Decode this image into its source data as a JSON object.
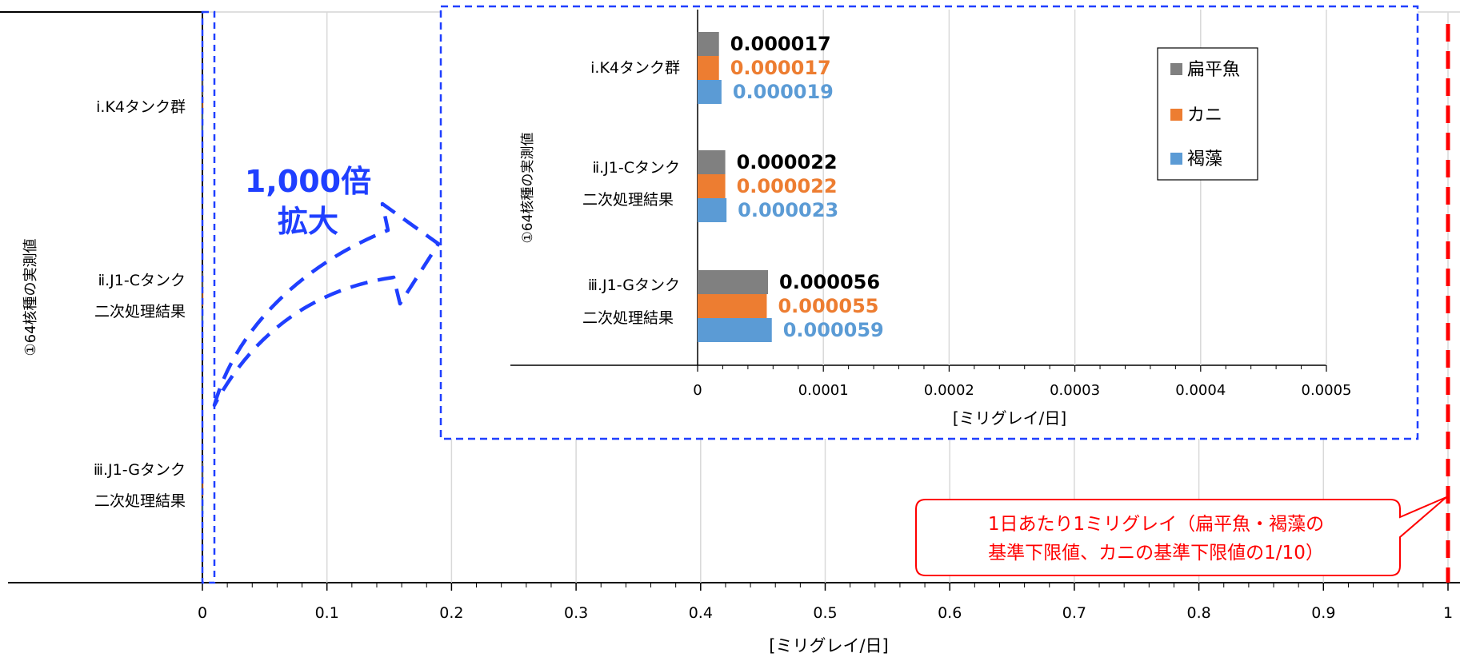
{
  "colors": {
    "flatfish": "#808080",
    "crab": "#ed7d31",
    "seaweed": "#5b9bd5",
    "zoom_box": "#1f3fff",
    "limit": "#ff0000",
    "callout_text": "#ff0000"
  },
  "main_chart": {
    "chart_data": {
      "type": "bar",
      "orientation": "horizontal",
      "categories": [
        {
          "line1": "ⅰ.K4タンク群",
          "line2": ""
        },
        {
          "line1": "ⅱ.J1-Cタンク",
          "line2": "二次処理結果"
        },
        {
          "line1": "ⅲ.J1-Gタンク",
          "line2": "二次処理結果"
        }
      ],
      "series": [
        {
          "name": "扁平魚",
          "color": "#808080",
          "values": [
            1.7e-05,
            2.2e-05,
            5.6e-05
          ]
        },
        {
          "name": "カニ",
          "color": "#ed7d31",
          "values": [
            1.7e-05,
            2.2e-05,
            5.5e-05
          ]
        },
        {
          "name": "褐藻",
          "color": "#5b9bd5",
          "values": [
            1.9e-05,
            2.3e-05,
            5.9e-05
          ]
        }
      ],
      "xlim": [
        0,
        1
      ],
      "xticks": [
        0,
        0.1,
        0.2,
        0.3,
        0.4,
        0.5,
        0.6,
        0.7,
        0.8,
        0.9,
        1
      ],
      "tick_labels": [
        "0",
        "0.1",
        "0.2",
        "0.3",
        "0.4",
        "0.5",
        "0.6",
        "0.7",
        "0.8",
        "0.9",
        "1"
      ],
      "minor_step": 0.02,
      "xlabel": "[ミリグレイ/日]",
      "ylabel": "①64核種の実測値",
      "reference_line": 1,
      "grid": true
    }
  },
  "zoom_annotation": {
    "line1": "1,000倍",
    "line2": "拡大"
  },
  "callout": {
    "line1": "1日あたり1ミリグレイ（扁平魚・褐藻の",
    "line2": "基準下限値、カニの基準下限値の1/10）"
  },
  "inset_chart": {
    "chart_data": {
      "type": "bar",
      "orientation": "horizontal",
      "categories": [
        {
          "line1": "ⅰ.K4タンク群",
          "line2": ""
        },
        {
          "line1": "ⅱ.J1-Cタンク",
          "line2": "二次処理結果"
        },
        {
          "line1": "ⅲ.J1-Gタンク",
          "line2": "二次処理結果"
        }
      ],
      "series": [
        {
          "name": "扁平魚",
          "color": "#808080",
          "values": [
            1.7e-05,
            2.2e-05,
            5.6e-05
          ],
          "labels": [
            "0.000017",
            "0.000022",
            "0.000056"
          ]
        },
        {
          "name": "カニ",
          "color": "#ed7d31",
          "values": [
            1.7e-05,
            2.2e-05,
            5.5e-05
          ],
          "labels": [
            "0.000017",
            "0.000022",
            "0.000055"
          ]
        },
        {
          "name": "褐藻",
          "color": "#5b9bd5",
          "values": [
            1.9e-05,
            2.3e-05,
            5.9e-05
          ],
          "labels": [
            "0.000019",
            "0.000023",
            "0.000059"
          ]
        }
      ],
      "label_colors": [
        "#000000",
        "#ed7d31",
        "#5b9bd5"
      ],
      "xlim": [
        0,
        0.0005
      ],
      "xticks": [
        0,
        0.0001,
        0.0002,
        0.0003,
        0.0004,
        0.0005
      ],
      "tick_labels": [
        "0",
        "0.0001",
        "0.0002",
        "0.0003",
        "0.0004",
        "0.0005"
      ],
      "minor_step": 2e-05,
      "xlabel": "[ミリグレイ/日]",
      "ylabel": "①64核種の実測値",
      "legend": [
        "扁平魚",
        "カニ",
        "褐藻"
      ],
      "legend_position": "top-right",
      "grid": true
    }
  }
}
